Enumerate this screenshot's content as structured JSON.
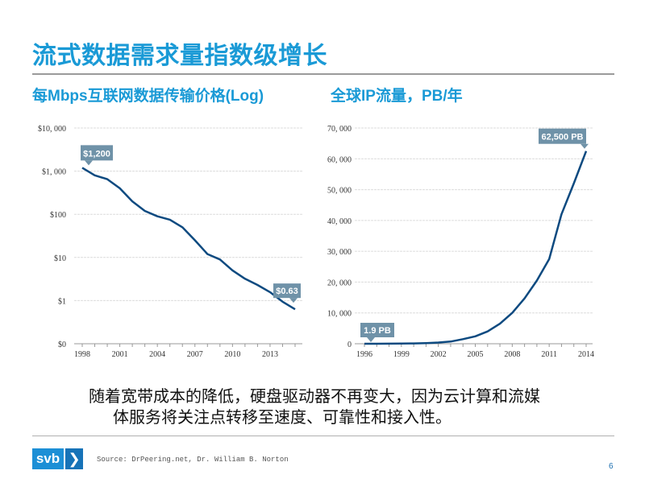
{
  "slide": {
    "title": "流式数据需求量指数级增长",
    "body_line1": "随着宽带成本的降低，硬盘驱动器不再变大，因为云计算和流媒",
    "body_line2": "体服务将关注点转移至速度、可靠性和接入性。",
    "source": "Source: DrPeering.net, Dr. William B. Norton",
    "page_number": "6",
    "logo_text": "svb",
    "logo_icon": "chevron-right-icon",
    "colors": {
      "title": "#1a9ad6",
      "line": "#0d4a80",
      "callout": "#6f92a8"
    }
  },
  "chart_data": [
    {
      "type": "line",
      "title": "每Mbps互联网数据传输价格(Log)",
      "yscale": "log",
      "x": [
        1998,
        1999,
        2000,
        2001,
        2002,
        2003,
        2004,
        2005,
        2006,
        2007,
        2008,
        2009,
        2010,
        2011,
        2012,
        2013,
        2014,
        2015
      ],
      "values": [
        1200,
        800,
        650,
        400,
        200,
        120,
        90,
        75,
        50,
        25,
        12,
        9,
        5,
        3.2,
        2.3,
        1.57,
        0.94,
        0.63
      ],
      "xticks": [
        "1998",
        "2001",
        "2004",
        "2007",
        "2010",
        "2013"
      ],
      "yticks": [
        "$0",
        "$1",
        "$10",
        "$100",
        "$1, 000",
        "$10, 000"
      ],
      "ylim": [
        0.1,
        10000
      ],
      "grid": true,
      "annotations": [
        {
          "x": 1998,
          "y": 1200,
          "label": "$1,200"
        },
        {
          "x": 2015,
          "y": 0.63,
          "label": "$0.63"
        }
      ]
    },
    {
      "type": "line",
      "title": "全球IP流量，PB/年",
      "x": [
        1996,
        1997,
        1998,
        1999,
        2000,
        2001,
        2002,
        2003,
        2004,
        2005,
        2006,
        2007,
        2008,
        2009,
        2010,
        2011,
        2012,
        2013,
        2014
      ],
      "values": [
        1.9,
        5,
        20,
        60,
        100,
        200,
        400,
        700,
        1500,
        2400,
        4000,
        6500,
        10000,
        14700,
        20500,
        27500,
        42000,
        52000,
        62500
      ],
      "xticks": [
        "1996",
        "1999",
        "2002",
        "2005",
        "2008",
        "2011",
        "2014"
      ],
      "yticks": [
        "0",
        "10, 000",
        "20, 000",
        "30, 000",
        "40, 000",
        "50, 000",
        "60, 000",
        "70, 000"
      ],
      "ylim": [
        0,
        70000
      ],
      "grid": true,
      "annotations": [
        {
          "x": 1996,
          "y": 1.9,
          "label": "1.9 PB"
        },
        {
          "x": 2014,
          "y": 62500,
          "label": "62,500 PB"
        }
      ]
    }
  ]
}
